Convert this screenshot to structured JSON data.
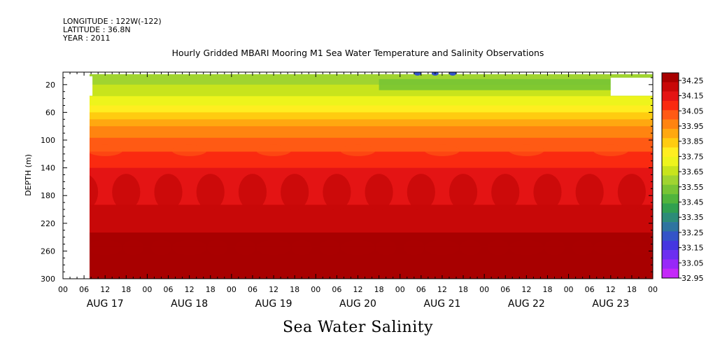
{
  "header": {
    "longitude": "LONGITUDE : 122W(-122)",
    "latitude": "LATITUDE : 36.8N",
    "year": "YEAR : 2011"
  },
  "chart_data": {
    "type": "heatmap",
    "title": "Hourly Gridded MBARI Mooring M1 Sea Water Temperature and Salinity Observations",
    "bottom_title": "Sea Water Salinity",
    "ylabel": "DEPTH (m)",
    "ylim": [
      300,
      2
    ],
    "y_ticks": [
      20,
      60,
      100,
      140,
      180,
      220,
      260,
      300
    ],
    "x_hour_ticks": [
      "00",
      "06",
      "12",
      "18",
      "00",
      "06",
      "12",
      "18",
      "00",
      "06",
      "12",
      "18",
      "00",
      "06",
      "12",
      "18",
      "00",
      "06",
      "12",
      "18",
      "00",
      "06",
      "12",
      "18",
      "00",
      "06",
      "12",
      "18",
      "00"
    ],
    "x_days": [
      "AUG 17",
      "AUG 18",
      "AUG 19",
      "AUG 20",
      "AUG 21",
      "AUG 22",
      "AUG 23"
    ],
    "colorbar": {
      "min": 32.95,
      "max": 34.3,
      "labels": [
        "34.25",
        "34.15",
        "34.05",
        "33.95",
        "33.85",
        "33.75",
        "33.65",
        "33.55",
        "33.45",
        "33.35",
        "33.25",
        "33.15",
        "33.05",
        "32.95"
      ],
      "colors": [
        "#a80000",
        "#c80808",
        "#e41414",
        "#fa2a10",
        "#ff5a14",
        "#ff8410",
        "#ffa810",
        "#ffcc10",
        "#ffee20",
        "#eef41c",
        "#c8e41c",
        "#a0d430",
        "#78c434",
        "#50b43c",
        "#30a050",
        "#2c8c78",
        "#2e74a0",
        "#3454c8",
        "#4436e0",
        "#6c2ef0",
        "#9828f8",
        "#c428f8"
      ]
    },
    "depth_profile": [
      {
        "depth": 5,
        "salinity": 33.58
      },
      {
        "depth": 20,
        "salinity": 33.62
      },
      {
        "depth": 40,
        "salinity": 33.7
      },
      {
        "depth": 60,
        "salinity": 33.8
      },
      {
        "depth": 80,
        "salinity": 33.93
      },
      {
        "depth": 100,
        "salinity": 34.0
      },
      {
        "depth": 120,
        "salinity": 34.07
      },
      {
        "depth": 140,
        "salinity": 34.12
      },
      {
        "depth": 180,
        "salinity": 34.15
      },
      {
        "depth": 220,
        "salinity": 34.22
      },
      {
        "depth": 260,
        "salinity": 34.28
      },
      {
        "depth": 300,
        "salinity": 34.26
      }
    ],
    "data_start": "AUG 17 07:00",
    "data_end": "AUG 24 00:00"
  }
}
